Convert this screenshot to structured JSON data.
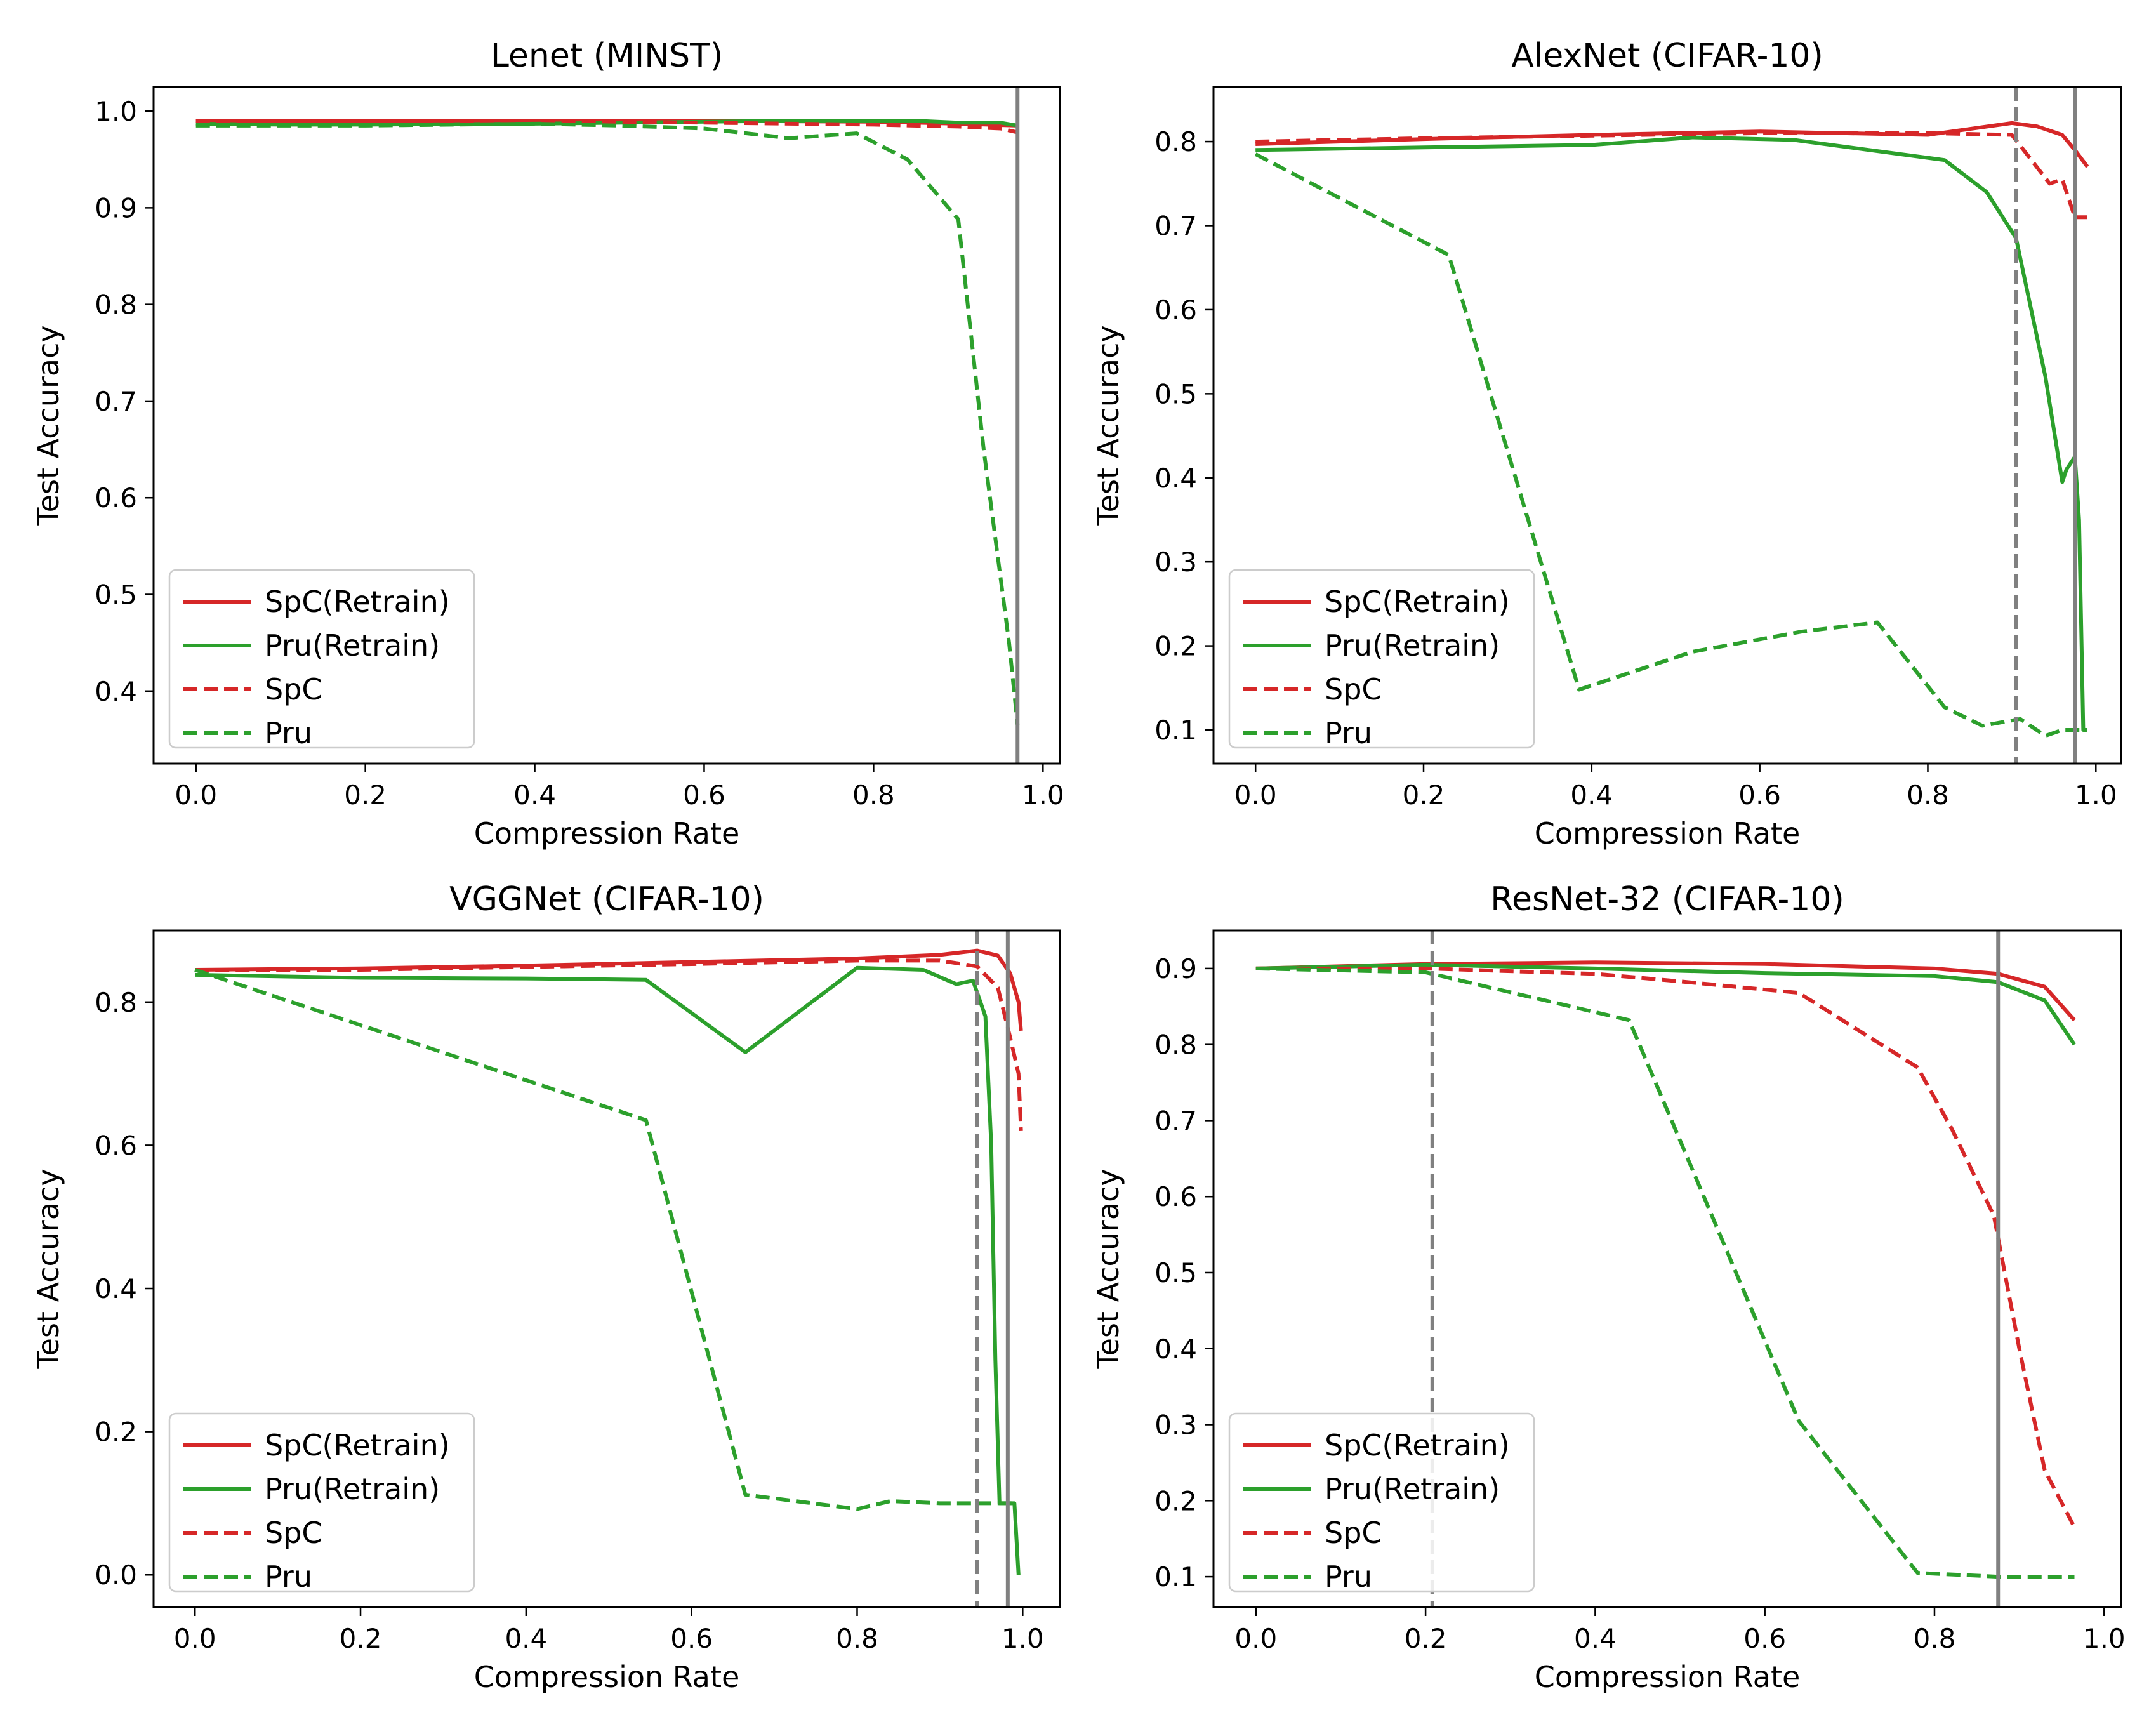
{
  "chart_data": [
    {
      "type": "line",
      "title": "Lenet (MINST)",
      "xlabel": "Compression Rate",
      "ylabel": "Test Accuracy",
      "xlim": [
        -0.05,
        1.02
      ],
      "ylim": [
        0.325,
        1.025
      ],
      "xticks": [
        0.0,
        0.2,
        0.4,
        0.6,
        0.8,
        1.0
      ],
      "xtick_labels": [
        "0.0",
        "0.2",
        "0.4",
        "0.6",
        "0.8",
        "1.0"
      ],
      "yticks": [
        0.4,
        0.5,
        0.6,
        0.7,
        0.8,
        0.9,
        1.0
      ],
      "ytick_labels": [
        "0.4",
        "0.5",
        "0.6",
        "0.7",
        "0.8",
        "0.9",
        "1.0"
      ],
      "legend_position": "lower-left",
      "vlines": [
        {
          "x": 0.97,
          "style": "solid",
          "color": "#808080"
        }
      ],
      "series": [
        {
          "name": "SpC(Retrain)",
          "color": "#d62728",
          "style": "solid",
          "x": [
            0.0,
            0.2,
            0.4,
            0.6,
            0.8,
            0.9,
            0.97
          ],
          "y": [
            0.99,
            0.99,
            0.99,
            0.99,
            0.989,
            0.987,
            0.985
          ]
        },
        {
          "name": "Pru(Retrain)",
          "color": "#2ca02c",
          "style": "solid",
          "x": [
            0.0,
            0.1,
            0.2,
            0.4,
            0.6,
            0.7,
            0.8,
            0.85,
            0.9,
            0.95,
            0.97
          ],
          "y": [
            0.987,
            0.986,
            0.986,
            0.987,
            0.989,
            0.99,
            0.99,
            0.99,
            0.988,
            0.988,
            0.985
          ]
        },
        {
          "name": "SpC",
          "color": "#d62728",
          "style": "dashed",
          "x": [
            0.0,
            0.2,
            0.4,
            0.6,
            0.8,
            0.9,
            0.95,
            0.97
          ],
          "y": [
            0.99,
            0.99,
            0.99,
            0.988,
            0.986,
            0.984,
            0.982,
            0.978
          ]
        },
        {
          "name": "Pru",
          "color": "#2ca02c",
          "style": "dashed",
          "x": [
            0.0,
            0.2,
            0.4,
            0.5,
            0.6,
            0.7,
            0.78,
            0.84,
            0.9,
            0.93,
            0.96,
            0.97
          ],
          "y": [
            0.985,
            0.985,
            0.987,
            0.985,
            0.982,
            0.972,
            0.977,
            0.95,
            0.888,
            0.65,
            0.45,
            0.365
          ]
        }
      ]
    },
    {
      "type": "line",
      "title": "AlexNet (CIFAR-10)",
      "xlabel": "Compression Rate",
      "ylabel": "Test Accuracy",
      "xlim": [
        -0.05,
        1.03
      ],
      "ylim": [
        0.06,
        0.865
      ],
      "xticks": [
        0.0,
        0.2,
        0.4,
        0.6,
        0.8,
        1.0
      ],
      "xtick_labels": [
        "0.0",
        "0.2",
        "0.4",
        "0.6",
        "0.8",
        "1.0"
      ],
      "yticks": [
        0.1,
        0.2,
        0.3,
        0.4,
        0.5,
        0.6,
        0.7,
        0.8
      ],
      "ytick_labels": [
        "0.1",
        "0.2",
        "0.3",
        "0.4",
        "0.5",
        "0.6",
        "0.7",
        "0.8"
      ],
      "legend_position": "lower-left",
      "vlines": [
        {
          "x": 0.905,
          "style": "dashed",
          "color": "#808080"
        },
        {
          "x": 0.975,
          "style": "solid",
          "color": "#808080"
        }
      ],
      "series": [
        {
          "name": "SpC(Retrain)",
          "color": "#d62728",
          "style": "solid",
          "x": [
            0.0,
            0.2,
            0.4,
            0.6,
            0.8,
            0.9,
            0.93,
            0.96,
            0.975,
            0.99
          ],
          "y": [
            0.797,
            0.803,
            0.808,
            0.812,
            0.808,
            0.822,
            0.818,
            0.808,
            0.79,
            0.77
          ]
        },
        {
          "name": "Pru(Retrain)",
          "color": "#2ca02c",
          "style": "solid",
          "x": [
            0.0,
            0.2,
            0.4,
            0.52,
            0.64,
            0.82,
            0.87,
            0.905,
            0.94,
            0.96,
            0.965,
            0.975,
            0.98,
            0.985,
            0.99
          ],
          "y": [
            0.79,
            0.793,
            0.796,
            0.805,
            0.802,
            0.778,
            0.74,
            0.685,
            0.52,
            0.395,
            0.41,
            0.425,
            0.35,
            0.1,
            0.1
          ]
        },
        {
          "name": "SpC",
          "color": "#d62728",
          "style": "dashed",
          "x": [
            0.0,
            0.2,
            0.4,
            0.6,
            0.8,
            0.9,
            0.945,
            0.96,
            0.975,
            0.99
          ],
          "y": [
            0.8,
            0.804,
            0.807,
            0.81,
            0.81,
            0.808,
            0.75,
            0.755,
            0.71,
            0.71
          ]
        },
        {
          "name": "Pru",
          "color": "#2ca02c",
          "style": "dashed",
          "x": [
            0.0,
            0.23,
            0.385,
            0.52,
            0.65,
            0.74,
            0.82,
            0.865,
            0.91,
            0.94,
            0.96,
            0.99
          ],
          "y": [
            0.785,
            0.665,
            0.148,
            0.193,
            0.217,
            0.228,
            0.127,
            0.105,
            0.113,
            0.093,
            0.1,
            0.1
          ]
        }
      ]
    },
    {
      "type": "line",
      "title": "VGGNet (CIFAR-10)",
      "xlabel": "Compression Rate",
      "ylabel": "Test Accuracy",
      "xlim": [
        -0.05,
        1.045
      ],
      "ylim": [
        -0.045,
        0.9
      ],
      "xticks": [
        0.0,
        0.2,
        0.4,
        0.6,
        0.8,
        1.0
      ],
      "xtick_labels": [
        "0.0",
        "0.2",
        "0.4",
        "0.6",
        "0.8",
        "1.0"
      ],
      "yticks": [
        0.0,
        0.2,
        0.4,
        0.6,
        0.8
      ],
      "ytick_labels": [
        "0.0",
        "0.2",
        "0.4",
        "0.6",
        "0.8"
      ],
      "legend_position": "lower-left",
      "vlines": [
        {
          "x": 0.945,
          "style": "dashed",
          "color": "#808080"
        },
        {
          "x": 0.982,
          "style": "solid",
          "color": "#808080"
        }
      ],
      "series": [
        {
          "name": "SpC(Retrain)",
          "color": "#d62728",
          "style": "solid",
          "x": [
            0.0,
            0.2,
            0.4,
            0.6,
            0.8,
            0.9,
            0.945,
            0.97,
            0.985,
            0.995,
            0.998
          ],
          "y": [
            0.845,
            0.847,
            0.851,
            0.856,
            0.861,
            0.866,
            0.872,
            0.865,
            0.84,
            0.8,
            0.76
          ]
        },
        {
          "name": "Pru(Retrain)",
          "color": "#2ca02c",
          "style": "solid",
          "x": [
            0.0,
            0.2,
            0.4,
            0.545,
            0.665,
            0.8,
            0.88,
            0.92,
            0.94,
            0.955,
            0.962,
            0.967,
            0.972,
            0.982,
            0.99,
            0.995
          ],
          "y": [
            0.838,
            0.834,
            0.833,
            0.831,
            0.73,
            0.848,
            0.845,
            0.825,
            0.83,
            0.78,
            0.6,
            0.3,
            0.1,
            0.1,
            0.1,
            0.0
          ]
        },
        {
          "name": "SpC",
          "color": "#d62728",
          "style": "dashed",
          "x": [
            0.0,
            0.2,
            0.4,
            0.6,
            0.8,
            0.9,
            0.945,
            0.97,
            0.985,
            0.995,
            0.998
          ],
          "y": [
            0.845,
            0.845,
            0.849,
            0.853,
            0.858,
            0.858,
            0.85,
            0.82,
            0.75,
            0.7,
            0.62
          ]
        },
        {
          "name": "Pru",
          "color": "#2ca02c",
          "style": "dashed",
          "x": [
            0.0,
            0.545,
            0.665,
            0.8,
            0.84,
            0.9,
            0.96,
            0.99
          ],
          "y": [
            0.845,
            0.635,
            0.112,
            0.092,
            0.103,
            0.1,
            0.1,
            0.1
          ]
        }
      ]
    },
    {
      "type": "line",
      "title": "ResNet-32 (CIFAR-10)",
      "xlabel": "Compression Rate",
      "ylabel": "Test Accuracy",
      "xlim": [
        -0.05,
        1.02
      ],
      "ylim": [
        0.06,
        0.95
      ],
      "xticks": [
        0.0,
        0.2,
        0.4,
        0.6,
        0.8,
        1.0
      ],
      "xtick_labels": [
        "0.0",
        "0.2",
        "0.4",
        "0.6",
        "0.8",
        "1.0"
      ],
      "yticks": [
        0.1,
        0.2,
        0.3,
        0.4,
        0.5,
        0.6,
        0.7,
        0.8,
        0.9
      ],
      "ytick_labels": [
        "0.1",
        "0.2",
        "0.3",
        "0.4",
        "0.5",
        "0.6",
        "0.7",
        "0.8",
        "0.9"
      ],
      "legend_position": "lower-left",
      "vlines": [
        {
          "x": 0.208,
          "style": "dashed",
          "color": "#808080"
        },
        {
          "x": 0.875,
          "style": "solid",
          "color": "#808080"
        }
      ],
      "series": [
        {
          "name": "SpC(Retrain)",
          "color": "#d62728",
          "style": "solid",
          "x": [
            0.0,
            0.2,
            0.4,
            0.6,
            0.8,
            0.875,
            0.93,
            0.965
          ],
          "y": [
            0.9,
            0.906,
            0.908,
            0.906,
            0.9,
            0.893,
            0.876,
            0.832
          ]
        },
        {
          "name": "Pru(Retrain)",
          "color": "#2ca02c",
          "style": "solid",
          "x": [
            0.0,
            0.2,
            0.4,
            0.6,
            0.8,
            0.875,
            0.93,
            0.965
          ],
          "y": [
            0.9,
            0.905,
            0.9,
            0.894,
            0.89,
            0.882,
            0.858,
            0.8
          ]
        },
        {
          "name": "SpC",
          "color": "#d62728",
          "style": "dashed",
          "x": [
            0.0,
            0.2,
            0.4,
            0.5,
            0.64,
            0.78,
            0.82,
            0.87,
            0.9,
            0.93,
            0.965
          ],
          "y": [
            0.9,
            0.9,
            0.893,
            0.883,
            0.868,
            0.77,
            0.69,
            0.575,
            0.4,
            0.24,
            0.165
          ]
        },
        {
          "name": "Pru",
          "color": "#2ca02c",
          "style": "dashed",
          "x": [
            0.0,
            0.2,
            0.44,
            0.64,
            0.78,
            0.875,
            0.965
          ],
          "y": [
            0.9,
            0.895,
            0.832,
            0.305,
            0.105,
            0.1,
            0.1
          ]
        }
      ]
    }
  ]
}
